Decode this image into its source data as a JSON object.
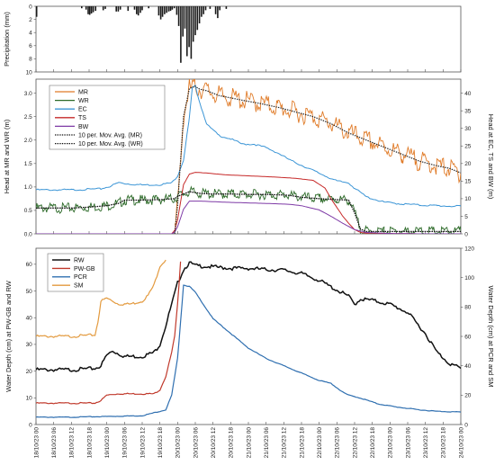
{
  "chart_data": [
    {
      "type": "bar",
      "panel": "precipitation",
      "ylabel": "Precipitation (mm)",
      "ylim": [
        10,
        0
      ],
      "yticks": [
        0,
        2,
        4,
        6,
        8,
        10
      ],
      "x_range": [
        "18/10/23 00",
        "24/10/23 00"
      ],
      "bars": [
        {
          "t": 0.2,
          "v": 1.6
        },
        {
          "t": 15.5,
          "v": 0.3
        },
        {
          "t": 17.0,
          "v": 0.5
        },
        {
          "t": 17.7,
          "v": 1.2
        },
        {
          "t": 18.2,
          "v": 1.3
        },
        {
          "t": 18.8,
          "v": 1.1
        },
        {
          "t": 19.4,
          "v": 0.9
        },
        {
          "t": 20.2,
          "v": 0.7
        },
        {
          "t": 22.8,
          "v": 0.6
        },
        {
          "t": 23.5,
          "v": 0.4
        },
        {
          "t": 27.2,
          "v": 0.8
        },
        {
          "t": 27.9,
          "v": 0.8
        },
        {
          "t": 28.6,
          "v": 0.5
        },
        {
          "t": 31.2,
          "v": 0.7
        },
        {
          "t": 33.4,
          "v": 0.5
        },
        {
          "t": 34.1,
          "v": 1.2
        },
        {
          "t": 34.7,
          "v": 1.4
        },
        {
          "t": 35.4,
          "v": 1.0
        },
        {
          "t": 36.0,
          "v": 0.6
        },
        {
          "t": 38.2,
          "v": 0.3
        },
        {
          "t": 41.6,
          "v": 1.4
        },
        {
          "t": 42.3,
          "v": 2.0
        },
        {
          "t": 42.9,
          "v": 1.6
        },
        {
          "t": 43.6,
          "v": 1.2
        },
        {
          "t": 44.3,
          "v": 1.0
        },
        {
          "t": 45.0,
          "v": 0.8
        },
        {
          "t": 45.6,
          "v": 0.7
        },
        {
          "t": 46.2,
          "v": 0.5
        },
        {
          "t": 46.9,
          "v": 0.3
        },
        {
          "t": 47.7,
          "v": 1.3
        },
        {
          "t": 48.4,
          "v": 3.0
        },
        {
          "t": 49.1,
          "v": 8.6
        },
        {
          "t": 49.8,
          "v": 4.6
        },
        {
          "t": 50.5,
          "v": 3.4
        },
        {
          "t": 51.2,
          "v": 7.6
        },
        {
          "t": 51.9,
          "v": 6.2
        },
        {
          "t": 52.6,
          "v": 8.0
        },
        {
          "t": 53.3,
          "v": 5.4
        },
        {
          "t": 54.0,
          "v": 4.4
        },
        {
          "t": 54.7,
          "v": 3.6
        },
        {
          "t": 55.4,
          "v": 2.6
        },
        {
          "t": 56.1,
          "v": 1.6
        },
        {
          "t": 56.8,
          "v": 1.2
        },
        {
          "t": 57.5,
          "v": 0.6
        },
        {
          "t": 59.0,
          "v": 0.4
        },
        {
          "t": 60.9,
          "v": 1.2
        },
        {
          "t": 61.6,
          "v": 1.8
        },
        {
          "t": 62.3,
          "v": 0.6
        },
        {
          "t": 64.5,
          "v": 0.4
        }
      ]
    },
    {
      "type": "line",
      "panel": "heads",
      "ylabel_left": "Head at MR and WR (m)",
      "ylabel_right": "Head at EC, TS and BW (m)",
      "ylim_left": [
        0,
        3.3
      ],
      "yticks_left": [
        0.0,
        0.5,
        1.0,
        1.5,
        2.0,
        2.5,
        3.0
      ],
      "ylim_right": [
        0,
        44
      ],
      "yticks_right": [
        0,
        5,
        10,
        15,
        20,
        25,
        30,
        35,
        40
      ],
      "legend": [
        "MR",
        "WR",
        "EC",
        "TS",
        "BW",
        "10 per. Mov. Avg. (MR)",
        "10 per. Mov. Avg. (WR)"
      ],
      "legend_position": "top-left",
      "series": [
        {
          "name": "MR",
          "axis": "left",
          "color": "#e07b28",
          "t": [
            0,
            47,
            48,
            50,
            52,
            54,
            55,
            56,
            58,
            60,
            62,
            66,
            70,
            76,
            82,
            88,
            94,
            100,
            106,
            112,
            118,
            124,
            130,
            136,
            140,
            142,
            144
          ],
          "y": [
            0.0,
            0.0,
            0.6,
            2.5,
            3.1,
            3.15,
            3.1,
            3.08,
            3.05,
            3.0,
            2.95,
            2.9,
            2.85,
            2.78,
            2.7,
            2.6,
            2.5,
            2.35,
            2.15,
            2.0,
            1.85,
            1.7,
            1.55,
            1.45,
            1.4,
            1.35,
            1.3
          ]
        },
        {
          "name": "WR",
          "axis": "left",
          "color": "#2e6b2a",
          "t": [
            0,
            12,
            18,
            24,
            28,
            30,
            36,
            42,
            47,
            48,
            50,
            52,
            54,
            56,
            60,
            66,
            72,
            78,
            84,
            86,
            90,
            96,
            102,
            106,
            108,
            110,
            112,
            118,
            124,
            130,
            136,
            144
          ],
          "y": [
            0.55,
            0.55,
            0.57,
            0.6,
            0.65,
            0.72,
            0.72,
            0.73,
            0.75,
            0.8,
            0.85,
            0.9,
            0.88,
            0.86,
            0.85,
            0.85,
            0.84,
            0.84,
            0.83,
            0.82,
            0.78,
            0.75,
            0.73,
            0.72,
            0.45,
            0.1,
            0.05,
            0.05,
            0.05,
            0.05,
            0.05,
            0.05
          ]
        },
        {
          "name": "EC",
          "axis": "right",
          "color": "#3b95d6",
          "t": [
            0,
            12,
            22,
            25,
            27,
            28,
            30,
            36,
            42,
            46,
            48,
            50,
            52,
            53,
            54,
            56,
            58,
            62,
            66,
            70,
            74,
            78,
            82,
            86,
            90,
            94,
            98,
            102,
            106,
            108,
            112,
            118,
            124,
            130,
            136,
            144
          ],
          "y": [
            12.5,
            12.5,
            12.8,
            13.5,
            14.2,
            14.6,
            14.3,
            13.9,
            14.0,
            14.5,
            16.5,
            21,
            33,
            41.5,
            42,
            36,
            31,
            28,
            27,
            25.5,
            25.5,
            24.5,
            23,
            21,
            19.5,
            18,
            16.5,
            15,
            14.5,
            13,
            10.5,
            9.0,
            8.5,
            8.2,
            8.0,
            7.8
          ]
        },
        {
          "name": "TS",
          "axis": "right",
          "color": "#c62828",
          "t": [
            0,
            12,
            24,
            36,
            46,
            47,
            48,
            49,
            50,
            52,
            54,
            58,
            64,
            72,
            80,
            88,
            94,
            98,
            100,
            102,
            104,
            106,
            108,
            110,
            112,
            120,
            130,
            144
          ],
          "y": [
            0,
            0,
            0,
            0,
            0,
            1,
            4,
            9,
            14,
            17,
            17.5,
            17.3,
            16.8,
            16.5,
            16.2,
            15.8,
            15.2,
            13,
            10,
            7.5,
            5,
            3,
            1.2,
            0.4,
            0.2,
            0.1,
            0.0,
            0.0
          ]
        },
        {
          "name": "BW",
          "axis": "right",
          "color": "#7e3aa6",
          "t": [
            0,
            12,
            24,
            36,
            46,
            47,
            48,
            50,
            52,
            56,
            64,
            72,
            80,
            86,
            90,
            96,
            100,
            104,
            108,
            112,
            120,
            130,
            144
          ],
          "y": [
            0,
            0,
            0,
            0,
            0,
            0.5,
            2,
            7,
            9.3,
            9.3,
            9.0,
            8.8,
            8.6,
            8.4,
            8.0,
            6.8,
            5.0,
            3.0,
            1.2,
            0.4,
            0.1,
            0.0,
            0.0
          ]
        }
      ]
    },
    {
      "type": "line",
      "panel": "water_depth",
      "ylabel_left": "Water Depth (cm) at PW-GB and RW",
      "ylabel_right": "Water Depth (cm) at PCR and SM",
      "ylim_left": [
        0,
        66
      ],
      "yticks_left": [
        0,
        10,
        20,
        30,
        40,
        50,
        60
      ],
      "ylim_right": [
        0,
        120
      ],
      "yticks_right": [
        0,
        20,
        40,
        60,
        80,
        100,
        120
      ],
      "legend": [
        "RW",
        "PW-GB",
        "PCR",
        "SM"
      ],
      "legend_position": "top-left",
      "x_ticks": [
        "18/10/23 00",
        "18/10/23 06",
        "18/10/23 12",
        "18/10/23 18",
        "19/10/23 00",
        "19/10/23 06",
        "19/10/23 12",
        "19/10/23 18",
        "20/10/23 00",
        "20/10/23 06",
        "20/10/23 12",
        "20/10/23 18",
        "21/10/23 00",
        "21/10/23 06",
        "21/10/23 12",
        "21/10/23 18",
        "22/10/23 00",
        "22/10/23 06",
        "22/10/23 12",
        "22/10/23 18",
        "23/10/23 00",
        "23/10/23 06",
        "23/10/23 12",
        "23/10/23 18",
        "24/10/23 00"
      ],
      "series": [
        {
          "name": "RW",
          "axis": "left",
          "color": "#111111",
          "t": [
            0,
            12,
            20,
            22,
            24,
            26,
            28,
            30,
            36,
            40,
            42,
            44,
            46,
            48,
            50,
            52,
            54,
            60,
            66,
            72,
            78,
            84,
            90,
            96,
            100,
            106,
            108,
            110,
            114,
            120,
            126,
            132,
            136,
            140,
            144
          ],
          "y": [
            20.5,
            20.5,
            21,
            22,
            26,
            27.5,
            26.5,
            25.5,
            25.5,
            27,
            30,
            37,
            45,
            53,
            58,
            60.5,
            59.5,
            59,
            58.5,
            58.5,
            58,
            57.8,
            56.5,
            54,
            51.5,
            48,
            45,
            47,
            46.5,
            45,
            42,
            34,
            27,
            23,
            21
          ]
        },
        {
          "name": "PW-GB",
          "axis": "left",
          "color": "#c0392b",
          "t": [
            0,
            12,
            20,
            22,
            24,
            28,
            34,
            40,
            42,
            44,
            46,
            47,
            48,
            49
          ],
          "y": [
            8,
            8,
            8,
            9,
            11,
            11.5,
            11.5,
            11.5,
            13,
            18,
            27,
            33,
            45,
            61
          ]
        },
        {
          "name": "PCR",
          "axis": "right",
          "color": "#2f6fb0",
          "t": [
            0,
            12,
            24,
            36,
            44,
            46,
            48,
            50,
            52,
            54,
            56,
            60,
            66,
            72,
            78,
            84,
            90,
            96,
            100,
            102,
            104,
            106,
            110,
            116,
            122,
            130,
            136,
            144
          ],
          "y": [
            5,
            5,
            5.5,
            6,
            10,
            20,
            45,
            95,
            94,
            90,
            84,
            72,
            62,
            52,
            45,
            40,
            35,
            30,
            28,
            25,
            22,
            20,
            18,
            14,
            12,
            10,
            9,
            8.5
          ]
        },
        {
          "name": "SM",
          "axis": "right",
          "color": "#e39a3e",
          "t": [
            0,
            12,
            20,
            21,
            22,
            24,
            26,
            28,
            32,
            36,
            38,
            40,
            42,
            44
          ],
          "y": [
            60,
            60,
            61,
            70,
            84,
            86,
            84,
            82,
            82,
            84,
            88,
            95,
            108,
            112
          ]
        }
      ]
    }
  ]
}
